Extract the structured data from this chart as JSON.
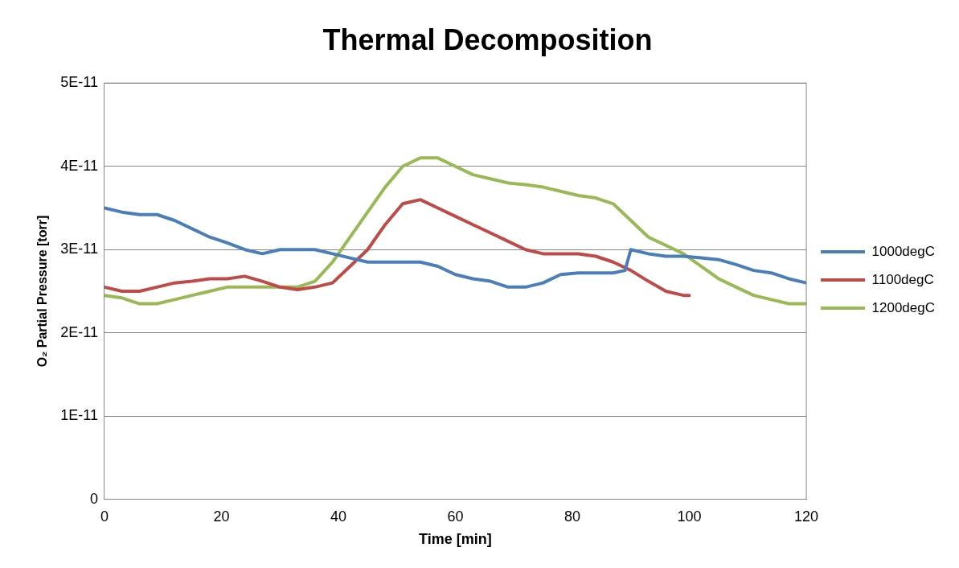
{
  "chart_data": {
    "type": "line",
    "title": "Thermal Decomposition",
    "xlabel": "Time [min]",
    "ylabel": "O₂ Partial Pressure [torr]",
    "xlim": [
      0,
      120
    ],
    "xticks": [
      0,
      20,
      40,
      60,
      80,
      100,
      120
    ],
    "ylim": [
      0,
      5e-11
    ],
    "yticks": [
      0,
      {
        "value": 1e-11,
        "label": "1E-11"
      },
      {
        "value": 2e-11,
        "label": "2E-11"
      },
      {
        "value": 3e-11,
        "label": "3E-11"
      },
      {
        "value": 4e-11,
        "label": "4E-11"
      },
      {
        "value": 5e-11,
        "label": "5E-11"
      }
    ],
    "grid": "y",
    "legend": "right",
    "marker": "none",
    "line_style": "solid",
    "series": [
      {
        "name": "1000degC",
        "color": "#4a7ebb",
        "x": [
          0,
          3,
          6,
          9,
          12,
          15,
          18,
          21,
          24,
          27,
          30,
          33,
          36,
          39,
          42,
          45,
          48,
          51,
          54,
          57,
          60,
          63,
          66,
          69,
          72,
          75,
          78,
          81,
          84,
          87,
          89,
          90,
          93,
          96,
          99,
          102,
          105,
          108,
          111,
          114,
          117,
          120
        ],
        "values": [
          3.5e-11,
          3.45e-11,
          3.42e-11,
          3.42e-11,
          3.35e-11,
          3.25e-11,
          3.15e-11,
          3.08e-11,
          3e-11,
          2.95e-11,
          3e-11,
          3e-11,
          3e-11,
          2.95e-11,
          2.9e-11,
          2.85e-11,
          2.85e-11,
          2.85e-11,
          2.85e-11,
          2.8e-11,
          2.7e-11,
          2.65e-11,
          2.62e-11,
          2.55e-11,
          2.55e-11,
          2.6e-11,
          2.7e-11,
          2.72e-11,
          2.72e-11,
          2.72e-11,
          2.75e-11,
          3e-11,
          2.95e-11,
          2.92e-11,
          2.92e-11,
          2.9e-11,
          2.88e-11,
          2.82e-11,
          2.75e-11,
          2.72e-11,
          2.65e-11,
          2.6e-11
        ]
      },
      {
        "name": "1100degC",
        "color": "#be4b48",
        "x": [
          0,
          3,
          6,
          9,
          12,
          15,
          18,
          21,
          24,
          27,
          30,
          33,
          36,
          39,
          42,
          45,
          48,
          51,
          54,
          57,
          60,
          63,
          66,
          69,
          72,
          75,
          78,
          81,
          84,
          87,
          90,
          93,
          96,
          99,
          100
        ],
        "values": [
          2.55e-11,
          2.5e-11,
          2.5e-11,
          2.55e-11,
          2.6e-11,
          2.62e-11,
          2.65e-11,
          2.65e-11,
          2.68e-11,
          2.62e-11,
          2.55e-11,
          2.52e-11,
          2.55e-11,
          2.6e-11,
          2.8e-11,
          3e-11,
          3.3e-11,
          3.55e-11,
          3.6e-11,
          3.5e-11,
          3.4e-11,
          3.3e-11,
          3.2e-11,
          3.1e-11,
          3e-11,
          2.95e-11,
          2.95e-11,
          2.95e-11,
          2.92e-11,
          2.85e-11,
          2.75e-11,
          2.62e-11,
          2.5e-11,
          2.45e-11,
          2.45e-11
        ]
      },
      {
        "name": "1200degC",
        "color": "#98b954",
        "x": [
          0,
          3,
          6,
          9,
          12,
          15,
          18,
          21,
          24,
          27,
          30,
          33,
          36,
          39,
          42,
          45,
          48,
          51,
          54,
          57,
          60,
          63,
          66,
          69,
          72,
          75,
          78,
          81,
          84,
          87,
          90,
          93,
          96,
          99,
          102,
          105,
          108,
          111,
          114,
          117,
          120
        ],
        "values": [
          2.45e-11,
          2.42e-11,
          2.35e-11,
          2.35e-11,
          2.4e-11,
          2.45e-11,
          2.5e-11,
          2.55e-11,
          2.55e-11,
          2.55e-11,
          2.55e-11,
          2.55e-11,
          2.62e-11,
          2.85e-11,
          3.15e-11,
          3.45e-11,
          3.75e-11,
          4e-11,
          4.1e-11,
          4.1e-11,
          4e-11,
          3.9e-11,
          3.85e-11,
          3.8e-11,
          3.78e-11,
          3.75e-11,
          3.7e-11,
          3.65e-11,
          3.62e-11,
          3.55e-11,
          3.35e-11,
          3.15e-11,
          3.05e-11,
          2.95e-11,
          2.8e-11,
          2.65e-11,
          2.55e-11,
          2.45e-11,
          2.4e-11,
          2.35e-11,
          2.35e-11
        ]
      }
    ]
  }
}
